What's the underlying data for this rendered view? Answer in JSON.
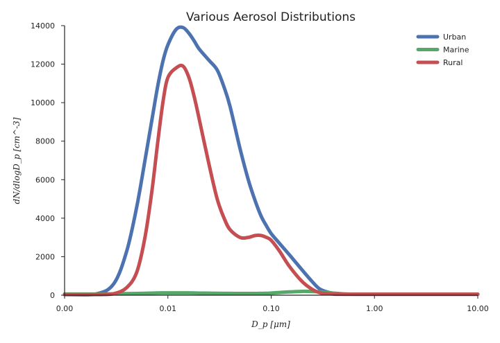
{
  "chart_data": {
    "type": "line",
    "title": "Various Aerosol Distributions",
    "xlabel": "D_p [μm]",
    "ylabel": "dN/dlogD_p [cm^-3]",
    "xscale": "log",
    "xlim": [
      0.001,
      10
    ],
    "ylim": [
      0,
      14000
    ],
    "x_ticks": [
      0.001,
      0.01,
      0.1,
      1,
      10
    ],
    "x_tick_labels": [
      "0.00",
      "0.01",
      "0.10",
      "1.00",
      "10.00"
    ],
    "y_ticks": [
      0,
      2000,
      4000,
      6000,
      8000,
      10000,
      12000,
      14000
    ],
    "y_tick_labels": [
      "0",
      "2000",
      "4000",
      "6000",
      "8000",
      "10000",
      "12000",
      "14000"
    ],
    "grid": false,
    "legend_position": "top-right",
    "x": [
      0.001,
      0.002,
      0.003,
      0.004,
      0.005,
      0.006,
      0.007,
      0.008,
      0.009,
      0.01,
      0.012,
      0.014,
      0.016,
      0.018,
      0.02,
      0.025,
      0.03,
      0.035,
      0.04,
      0.05,
      0.06,
      0.07,
      0.08,
      0.09,
      0.1,
      0.12,
      0.15,
      0.2,
      0.25,
      0.3,
      0.4,
      0.5,
      0.7,
      1,
      2,
      5,
      10
    ],
    "series": [
      {
        "name": "Urban",
        "color": "#4c72b0",
        "values": [
          50,
          60,
          600,
          2300,
          4600,
          7000,
          9100,
          10900,
          12200,
          13000,
          13800,
          13900,
          13600,
          13200,
          12800,
          12200,
          11700,
          10800,
          9800,
          7600,
          6000,
          4900,
          4100,
          3600,
          3200,
          2700,
          2100,
          1300,
          700,
          300,
          90,
          50,
          50,
          50,
          50,
          50,
          50
        ]
      },
      {
        "name": "Marine",
        "color": "#55a868",
        "values": [
          60,
          60,
          70,
          80,
          90,
          100,
          110,
          115,
          120,
          120,
          120,
          120,
          120,
          115,
          110,
          105,
          100,
          95,
          95,
          90,
          90,
          90,
          95,
          100,
          110,
          140,
          170,
          200,
          190,
          170,
          110,
          70,
          50,
          50,
          50,
          50,
          50
        ]
      },
      {
        "name": "Rural",
        "color": "#c44e52",
        "values": [
          30,
          30,
          80,
          400,
          1200,
          3000,
          5400,
          8000,
          10100,
          11300,
          11800,
          11900,
          11300,
          10300,
          9200,
          6800,
          5000,
          4000,
          3400,
          3000,
          3000,
          3100,
          3100,
          3000,
          2850,
          2300,
          1500,
          700,
          300,
          120,
          60,
          50,
          50,
          50,
          50,
          50,
          50
        ]
      }
    ]
  }
}
